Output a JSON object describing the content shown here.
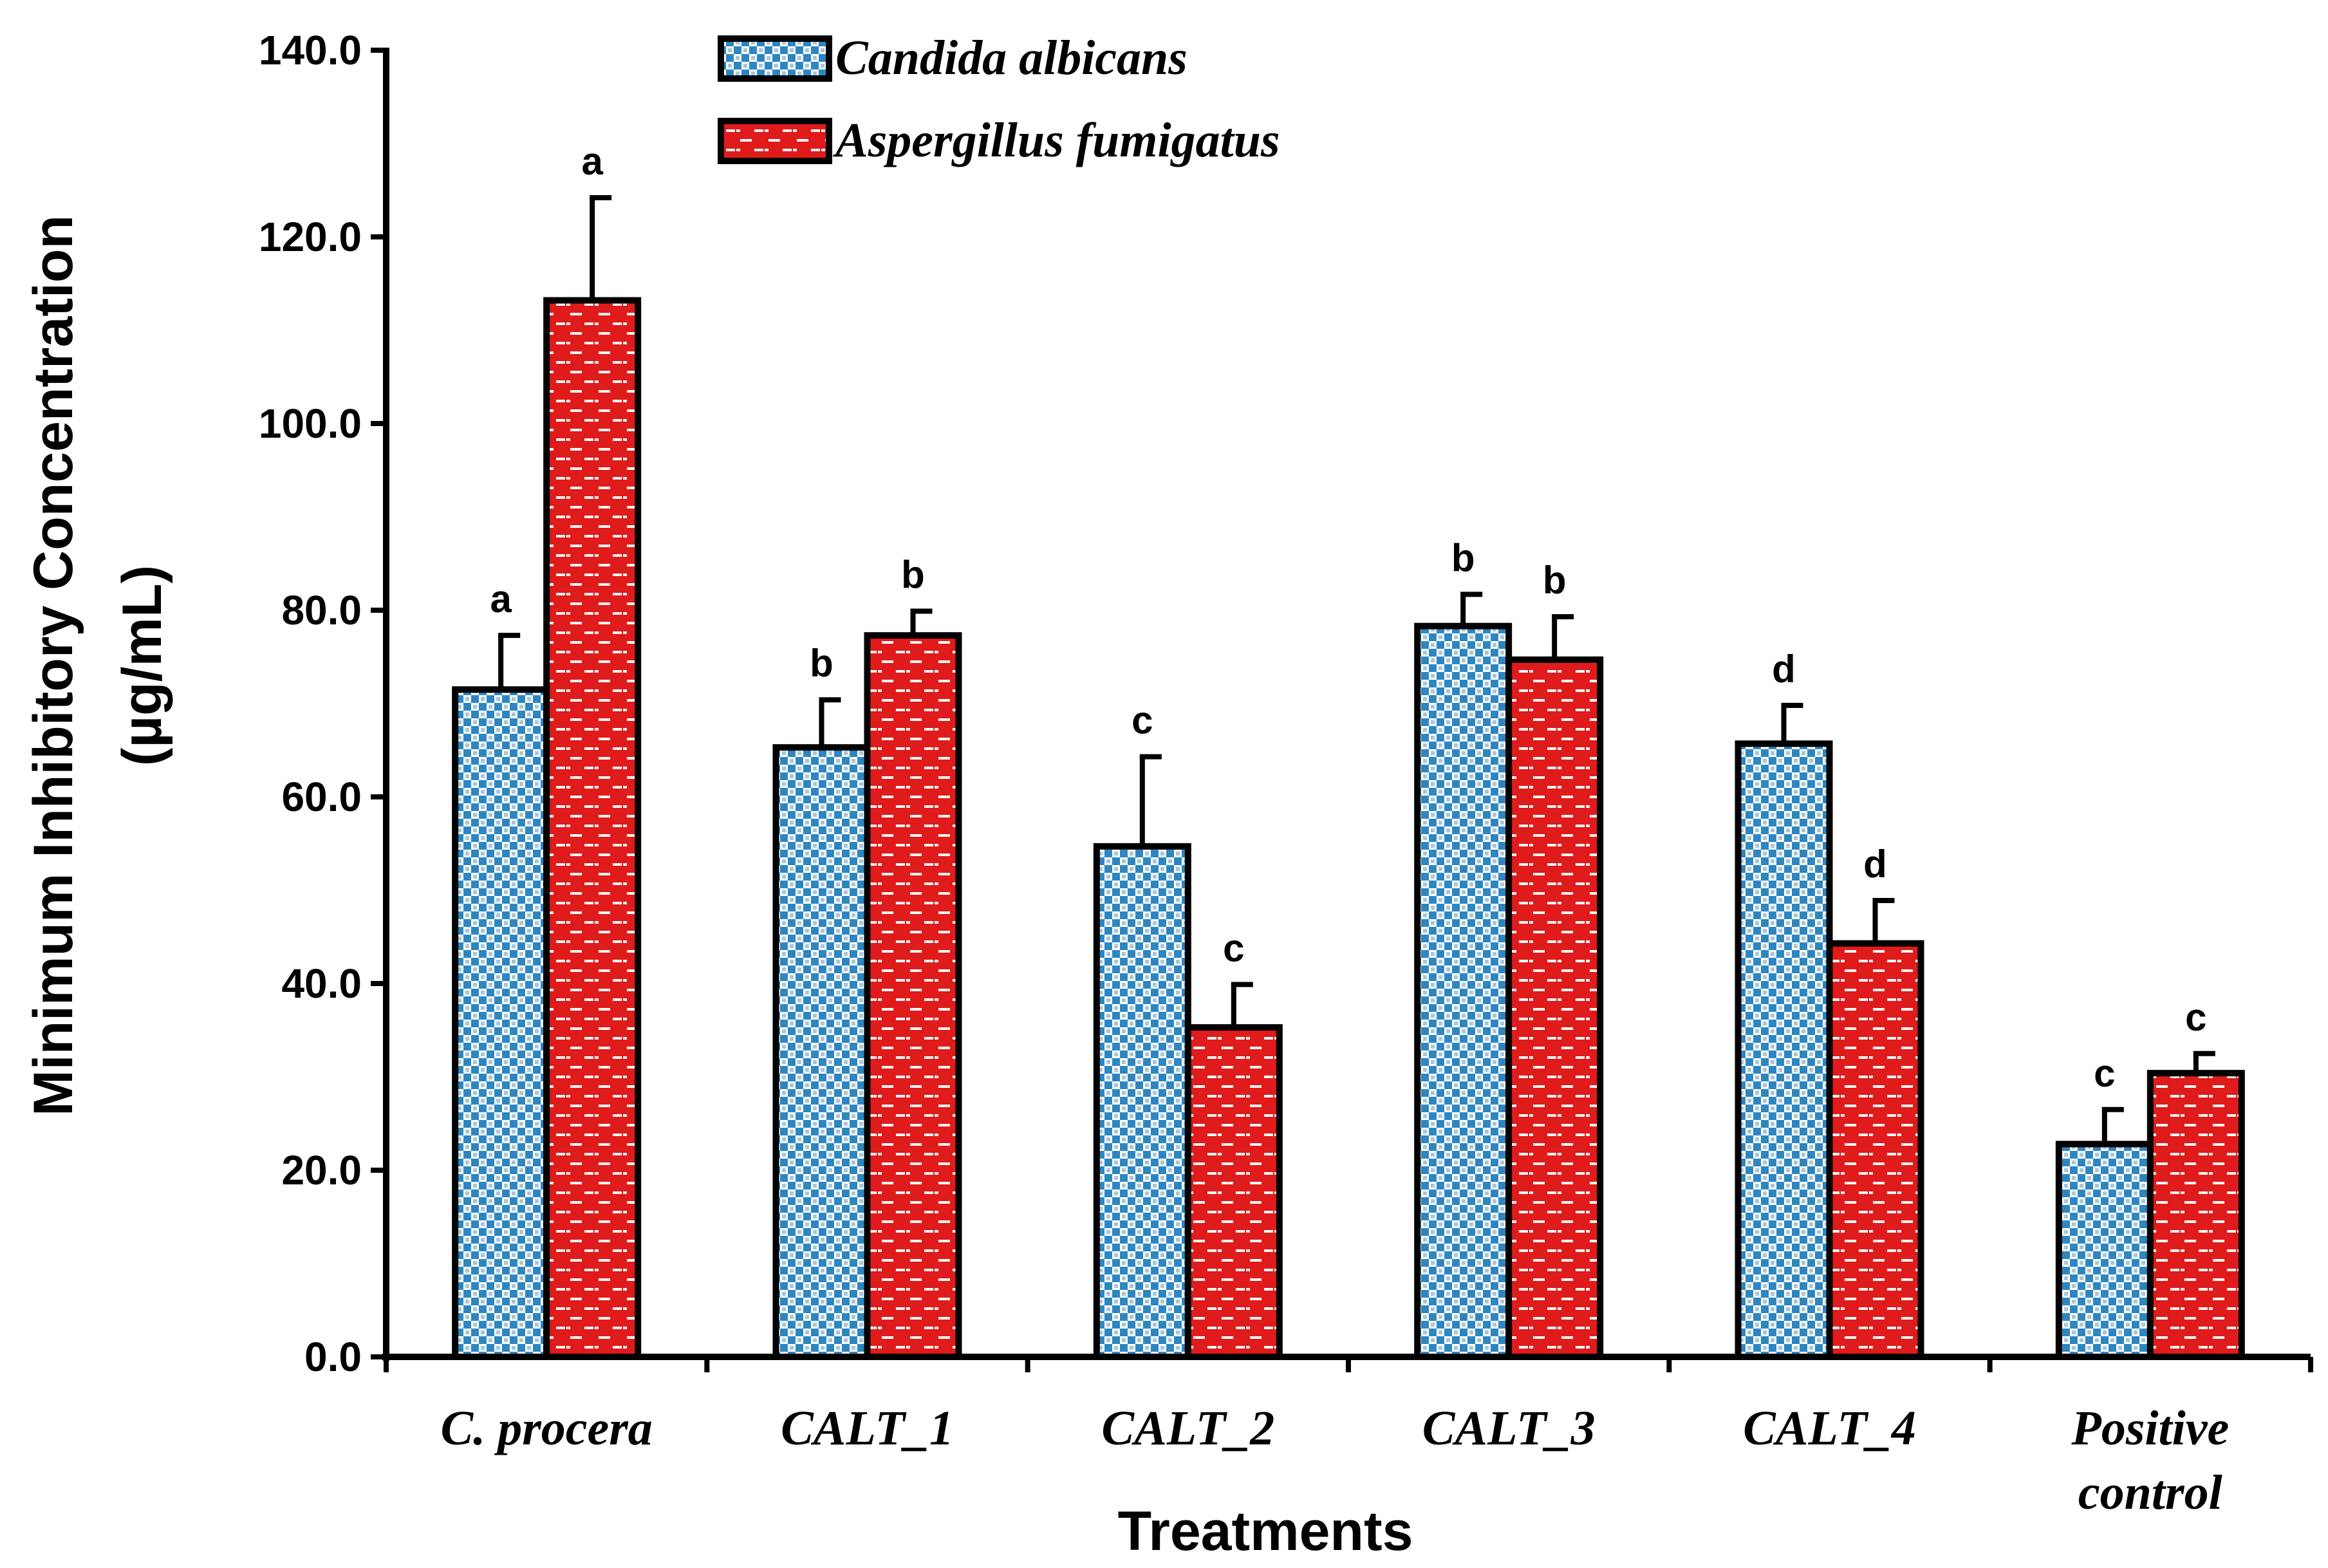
{
  "chart_data": {
    "type": "bar",
    "title": "",
    "xlabel": "Treatments",
    "ylabel_line1": "Minimum Inhibitory Concentration",
    "ylabel_line2": "(µg/mL)",
    "ylim": [
      0,
      140
    ],
    "yticks": [
      "0.0",
      "20.0",
      "40.0",
      "60.0",
      "80.0",
      "100.0",
      "120.0",
      "140.0"
    ],
    "categories": [
      "C. procera",
      "CALT_1",
      "CALT_2",
      "CALT_3",
      "CALT_4",
      "Positive control"
    ],
    "category_lines": [
      [
        "C. procera"
      ],
      [
        "CALT_1"
      ],
      [
        "CALT_2"
      ],
      [
        "CALT_3"
      ],
      [
        "CALT_4"
      ],
      [
        "Positive",
        "control"
      ]
    ],
    "legend_position": "top-center",
    "series": [
      {
        "name": "Candida albicans",
        "color": "#2E86C1",
        "pattern": "checkered",
        "values": [
          71.5,
          65.3,
          54.7,
          78.3,
          65.7,
          22.8
        ],
        "errors": [
          5.8,
          5.1,
          9.6,
          3.4,
          4.1,
          3.7
        ],
        "letters": [
          "a",
          "b",
          "c",
          "b",
          "d",
          "c"
        ]
      },
      {
        "name": "Aspergillus fumigatus",
        "color": "#E01B1B",
        "pattern": "dashes",
        "values": [
          113.2,
          77.3,
          35.3,
          74.7,
          44.3,
          30.4
        ],
        "errors": [
          11.0,
          2.6,
          4.6,
          4.6,
          4.6,
          2.1
        ],
        "letters": [
          "a",
          "b",
          "c",
          "b",
          "d",
          "c"
        ]
      }
    ]
  }
}
